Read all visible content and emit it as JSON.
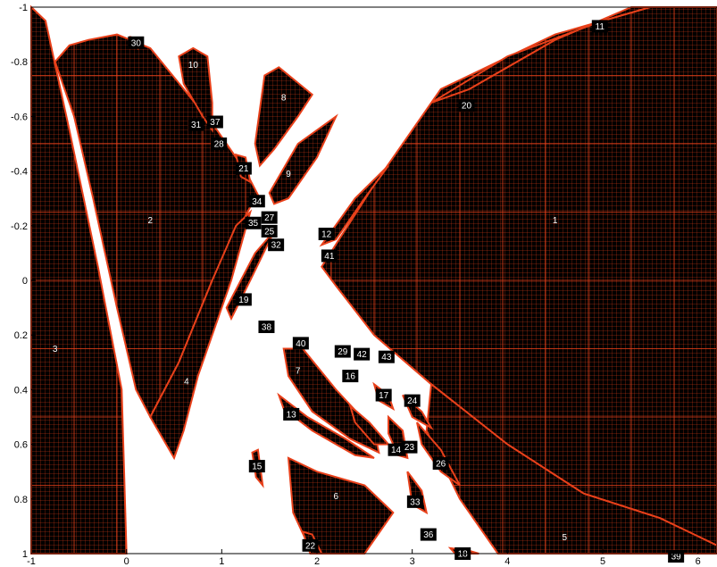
{
  "chart_data": {
    "type": "heatmap",
    "title": "",
    "xlabel": "",
    "ylabel": "",
    "xlim": [
      -1,
      6.2
    ],
    "ylim": [
      -1,
      1
    ],
    "y_reversed": true,
    "x_ticks": [
      -1,
      0,
      1,
      2,
      3,
      4,
      5,
      6
    ],
    "y_ticks": [
      -1,
      -0.8,
      -0.6,
      -0.4,
      -0.2,
      0,
      0.2,
      0.4,
      0.6,
      0.8,
      1
    ],
    "y_tick_labels": [
      "-1",
      "-0.8",
      "-0.6",
      "-0.4",
      "-0.2",
      "0",
      "0.2",
      "0.4",
      "0.6",
      "0.8",
      "1"
    ],
    "colors": {
      "fill": "#000000",
      "box_edges": "#e8401a",
      "background": "#ffffff",
      "label_bg": "#000000",
      "label_fg": "#ffffff"
    },
    "grid": false,
    "region_labels": [
      {
        "label": "1",
        "x": 4.5,
        "y": -0.22,
        "boxed": false
      },
      {
        "label": "2",
        "x": 0.25,
        "y": -0.22,
        "boxed": false
      },
      {
        "label": "3",
        "x": -0.75,
        "y": 0.25,
        "boxed": false
      },
      {
        "label": "4",
        "x": 0.63,
        "y": 0.37,
        "boxed": false
      },
      {
        "label": "5",
        "x": 4.6,
        "y": 0.94,
        "boxed": false
      },
      {
        "label": "6",
        "x": 2.2,
        "y": 0.79,
        "boxed": false
      },
      {
        "label": "7",
        "x": 1.8,
        "y": 0.33,
        "boxed": false
      },
      {
        "label": "8",
        "x": 1.65,
        "y": -0.67,
        "boxed": false
      },
      {
        "label": "9",
        "x": 1.7,
        "y": -0.39,
        "boxed": false
      },
      {
        "label": "10",
        "x": 0.7,
        "y": -0.79,
        "boxed": false
      },
      {
        "label": "11",
        "x": 4.97,
        "y": -0.93,
        "boxed": true
      },
      {
        "label": "12",
        "x": 2.1,
        "y": -0.17,
        "boxed": true
      },
      {
        "label": "13",
        "x": 1.73,
        "y": 0.49,
        "boxed": true
      },
      {
        "label": "14",
        "x": 2.83,
        "y": 0.62,
        "boxed": true
      },
      {
        "label": "15",
        "x": 1.37,
        "y": 0.68,
        "boxed": true
      },
      {
        "label": "16",
        "x": 2.35,
        "y": 0.35,
        "boxed": true
      },
      {
        "label": "17",
        "x": 2.7,
        "y": 0.42,
        "boxed": true
      },
      {
        "label": "18",
        "x": 3.53,
        "y": 1.0,
        "boxed": true
      },
      {
        "label": "19",
        "x": 1.23,
        "y": 0.07,
        "boxed": true
      },
      {
        "label": "20",
        "x": 3.57,
        "y": -0.64,
        "boxed": true
      },
      {
        "label": "21",
        "x": 1.23,
        "y": -0.41,
        "boxed": true
      },
      {
        "label": "22",
        "x": 1.93,
        "y": 0.97,
        "boxed": true
      },
      {
        "label": "23",
        "x": 2.97,
        "y": 0.61,
        "boxed": true
      },
      {
        "label": "24",
        "x": 3.0,
        "y": 0.44,
        "boxed": true
      },
      {
        "label": "25",
        "x": 1.5,
        "y": -0.18,
        "boxed": true
      },
      {
        "label": "26",
        "x": 3.3,
        "y": 0.67,
        "boxed": true
      },
      {
        "label": "27",
        "x": 1.5,
        "y": -0.23,
        "boxed": true
      },
      {
        "label": "28",
        "x": 0.97,
        "y": -0.5,
        "boxed": true
      },
      {
        "label": "29",
        "x": 2.27,
        "y": 0.26,
        "boxed": true
      },
      {
        "label": "30",
        "x": 0.1,
        "y": -0.87,
        "boxed": true
      },
      {
        "label": "31",
        "x": 0.73,
        "y": -0.57,
        "boxed": true
      },
      {
        "label": "32",
        "x": 1.57,
        "y": -0.13,
        "boxed": true
      },
      {
        "label": "33",
        "x": 3.03,
        "y": 0.81,
        "boxed": true
      },
      {
        "label": "34",
        "x": 1.37,
        "y": -0.29,
        "boxed": true
      },
      {
        "label": "35",
        "x": 1.33,
        "y": -0.21,
        "boxed": true
      },
      {
        "label": "36",
        "x": 3.17,
        "y": 0.93,
        "boxed": true
      },
      {
        "label": "37",
        "x": 0.93,
        "y": -0.58,
        "boxed": true
      },
      {
        "label": "38",
        "x": 1.47,
        "y": 0.17,
        "boxed": true
      },
      {
        "label": "39",
        "x": 5.77,
        "y": 1.01,
        "boxed": true
      },
      {
        "label": "40",
        "x": 1.83,
        "y": 0.23,
        "boxed": true
      },
      {
        "label": "41",
        "x": 2.13,
        "y": -0.09,
        "boxed": true
      },
      {
        "label": "42",
        "x": 2.47,
        "y": 0.27,
        "boxed": true
      },
      {
        "label": "43",
        "x": 2.73,
        "y": 0.28,
        "boxed": true
      }
    ],
    "regions": [
      {
        "name": "region-1",
        "points": [
          [
            3.3,
            -0.7
          ],
          [
            4.5,
            -0.9
          ],
          [
            5.5,
            -1
          ],
          [
            6.2,
            -1
          ],
          [
            6.2,
            0.97
          ],
          [
            5.6,
            0.87
          ],
          [
            4.8,
            0.78
          ],
          [
            4.0,
            0.6
          ],
          [
            3.2,
            0.38
          ],
          [
            2.6,
            0.2
          ],
          [
            2.2,
            0.02
          ],
          [
            2.05,
            -0.05
          ],
          [
            2.6,
            -0.35
          ]
        ]
      },
      {
        "name": "region-2",
        "points": [
          [
            -0.75,
            -0.8
          ],
          [
            -0.6,
            -0.86
          ],
          [
            -0.4,
            -0.88
          ],
          [
            -0.1,
            -0.9
          ],
          [
            0.25,
            -0.85
          ],
          [
            0.6,
            -0.7
          ],
          [
            0.95,
            -0.55
          ],
          [
            1.25,
            -0.4
          ],
          [
            1.4,
            -0.3
          ],
          [
            1.3,
            -0.27
          ],
          [
            0.9,
            0.0
          ],
          [
            0.55,
            0.3
          ],
          [
            0.25,
            0.5
          ],
          [
            0.1,
            0.4
          ],
          [
            -0.1,
            0.1
          ],
          [
            -0.35,
            -0.3
          ],
          [
            -0.55,
            -0.6
          ]
        ]
      },
      {
        "name": "region-3",
        "points": [
          [
            -1,
            -1
          ],
          [
            -0.85,
            -0.95
          ],
          [
            -0.6,
            -0.55
          ],
          [
            -0.3,
            -0.05
          ],
          [
            -0.05,
            0.4
          ],
          [
            0.0,
            1
          ],
          [
            -1,
            1
          ]
        ]
      },
      {
        "name": "region-4",
        "points": [
          [
            0.25,
            0.5
          ],
          [
            0.55,
            0.3
          ],
          [
            0.9,
            0.0
          ],
          [
            1.15,
            -0.2
          ],
          [
            1.3,
            -0.25
          ],
          [
            1.1,
            0.0
          ],
          [
            0.75,
            0.35
          ],
          [
            0.6,
            0.55
          ],
          [
            0.5,
            0.65
          ]
        ]
      },
      {
        "name": "region-5",
        "points": [
          [
            3.2,
            0.38
          ],
          [
            4.0,
            0.6
          ],
          [
            4.8,
            0.78
          ],
          [
            5.6,
            0.87
          ],
          [
            6.2,
            0.97
          ],
          [
            6.2,
            1
          ],
          [
            3.9,
            1
          ],
          [
            3.5,
            0.8
          ],
          [
            3.15,
            0.55
          ]
        ]
      },
      {
        "name": "region-6",
        "points": [
          [
            1.7,
            0.65
          ],
          [
            2.0,
            0.7
          ],
          [
            2.5,
            0.75
          ],
          [
            2.8,
            0.85
          ],
          [
            2.6,
            0.95
          ],
          [
            2.5,
            1
          ],
          [
            1.95,
            1
          ],
          [
            1.75,
            0.85
          ]
        ]
      },
      {
        "name": "region-7",
        "points": [
          [
            1.65,
            0.25
          ],
          [
            1.85,
            0.25
          ],
          [
            2.2,
            0.4
          ],
          [
            2.6,
            0.55
          ],
          [
            2.65,
            0.63
          ],
          [
            2.35,
            0.58
          ],
          [
            1.95,
            0.48
          ],
          [
            1.7,
            0.35
          ]
        ]
      },
      {
        "name": "region-8",
        "points": [
          [
            1.35,
            -0.5
          ],
          [
            1.45,
            -0.75
          ],
          [
            1.6,
            -0.78
          ],
          [
            1.95,
            -0.68
          ],
          [
            1.8,
            -0.6
          ],
          [
            1.55,
            -0.48
          ],
          [
            1.4,
            -0.42
          ]
        ]
      },
      {
        "name": "region-9",
        "points": [
          [
            1.5,
            -0.32
          ],
          [
            1.8,
            -0.5
          ],
          [
            2.2,
            -0.6
          ],
          [
            2.0,
            -0.45
          ],
          [
            1.7,
            -0.3
          ],
          [
            1.55,
            -0.28
          ]
        ]
      },
      {
        "name": "region-10",
        "points": [
          [
            0.55,
            -0.82
          ],
          [
            0.7,
            -0.85
          ],
          [
            0.85,
            -0.82
          ],
          [
            0.9,
            -0.65
          ],
          [
            0.9,
            -0.55
          ],
          [
            0.8,
            -0.6
          ],
          [
            0.6,
            -0.72
          ]
        ]
      },
      {
        "name": "region-11",
        "points": [
          [
            3.2,
            -0.65
          ],
          [
            4.0,
            -0.82
          ],
          [
            5.0,
            -0.95
          ],
          [
            5.5,
            -1
          ],
          [
            5.3,
            -1
          ],
          [
            4.5,
            -0.88
          ],
          [
            3.6,
            -0.7
          ]
        ]
      },
      {
        "name": "region-12",
        "points": [
          [
            2.05,
            -0.13
          ],
          [
            2.4,
            -0.3
          ],
          [
            2.75,
            -0.42
          ],
          [
            2.5,
            -0.3
          ],
          [
            2.2,
            -0.15
          ]
        ]
      },
      {
        "name": "region-13",
        "points": [
          [
            1.6,
            0.42
          ],
          [
            1.9,
            0.5
          ],
          [
            2.3,
            0.58
          ],
          [
            2.6,
            0.65
          ],
          [
            2.4,
            0.64
          ],
          [
            1.95,
            0.55
          ],
          [
            1.65,
            0.47
          ]
        ]
      },
      {
        "name": "region-15",
        "points": [
          [
            1.32,
            0.63
          ],
          [
            1.38,
            0.62
          ],
          [
            1.43,
            0.75
          ],
          [
            1.36,
            0.72
          ]
        ]
      },
      {
        "name": "region-19",
        "points": [
          [
            1.05,
            0.1
          ],
          [
            1.35,
            -0.1
          ],
          [
            1.55,
            -0.18
          ],
          [
            1.3,
            0.0
          ],
          [
            1.1,
            0.14
          ]
        ]
      },
      {
        "name": "region-21",
        "points": [
          [
            1.15,
            -0.46
          ],
          [
            1.25,
            -0.45
          ],
          [
            1.3,
            -0.36
          ],
          [
            1.2,
            -0.38
          ]
        ]
      },
      {
        "name": "region-22",
        "points": [
          [
            1.85,
            0.92
          ],
          [
            1.95,
            0.93
          ],
          [
            2.05,
            1
          ],
          [
            1.93,
            1
          ]
        ]
      },
      {
        "name": "region-26",
        "points": [
          [
            3.05,
            0.52
          ],
          [
            3.3,
            0.62
          ],
          [
            3.5,
            0.75
          ],
          [
            3.3,
            0.7
          ],
          [
            3.1,
            0.6
          ]
        ]
      },
      {
        "name": "region-30",
        "points": [
          [
            0.05,
            -0.89
          ],
          [
            0.15,
            -0.88
          ],
          [
            0.12,
            -0.85
          ]
        ]
      },
      {
        "name": "region-38",
        "points": [
          [
            2.35,
            0.46
          ],
          [
            2.55,
            0.52
          ],
          [
            2.75,
            0.6
          ],
          [
            2.6,
            0.6
          ],
          [
            2.4,
            0.52
          ]
        ]
      },
      {
        "name": "region-14",
        "points": [
          [
            2.75,
            0.5
          ],
          [
            2.9,
            0.55
          ],
          [
            2.95,
            0.65
          ],
          [
            2.85,
            0.64
          ],
          [
            2.75,
            0.56
          ]
        ]
      },
      {
        "name": "region-33",
        "points": [
          [
            2.95,
            0.7
          ],
          [
            3.1,
            0.77
          ],
          [
            3.15,
            0.85
          ],
          [
            3.0,
            0.82
          ]
        ]
      },
      {
        "name": "region-18",
        "points": [
          [
            3.4,
            0.98
          ],
          [
            3.6,
            0.99
          ],
          [
            3.7,
            1
          ],
          [
            3.45,
            1
          ]
        ]
      },
      {
        "name": "region-17",
        "points": [
          [
            2.6,
            0.38
          ],
          [
            2.75,
            0.42
          ],
          [
            2.8,
            0.47
          ],
          [
            2.65,
            0.44
          ]
        ]
      },
      {
        "name": "region-24",
        "points": [
          [
            2.9,
            0.42
          ],
          [
            3.1,
            0.48
          ],
          [
            3.2,
            0.54
          ],
          [
            3.0,
            0.5
          ]
        ]
      }
    ]
  }
}
